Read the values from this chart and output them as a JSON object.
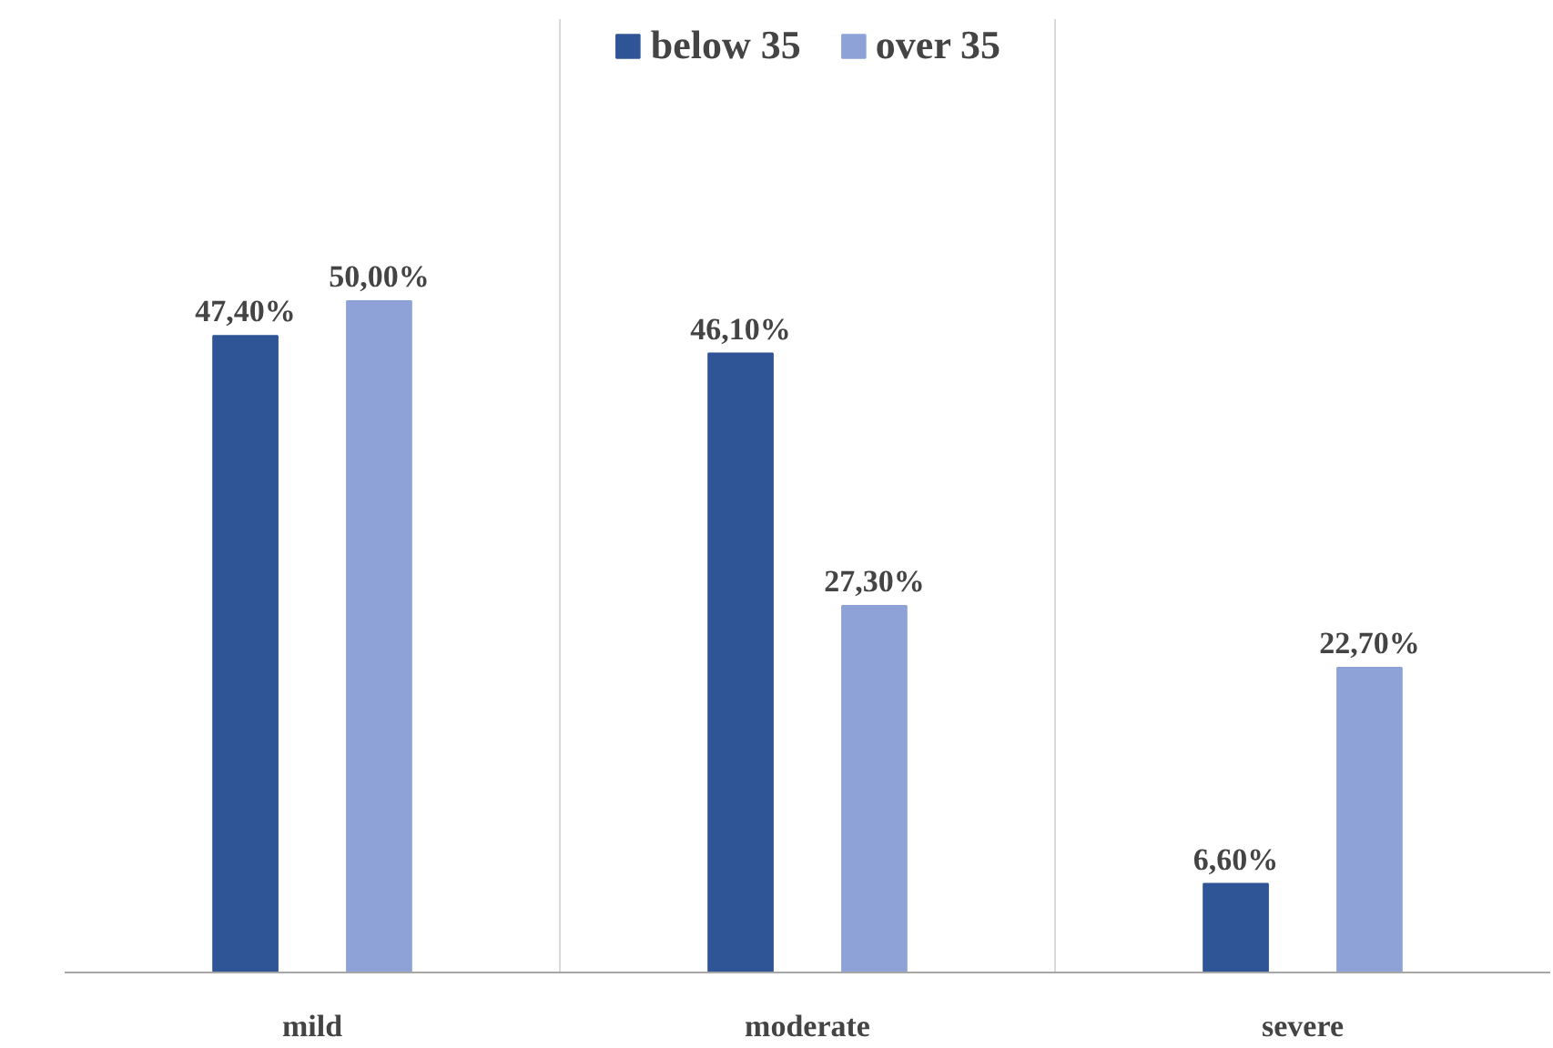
{
  "chart_data": {
    "type": "bar",
    "categories": [
      "mild",
      "moderate",
      "severe"
    ],
    "series": [
      {
        "name": "below 35",
        "color": "#2f5597",
        "values": [
          47.4,
          46.1,
          6.6
        ],
        "value_labels": [
          "47,40%",
          "46,10%",
          "6,60%"
        ]
      },
      {
        "name": "over 35",
        "color": "#8ea2d8",
        "values": [
          50.0,
          27.3,
          22.7
        ],
        "value_labels": [
          "50,00%",
          "27,30%",
          "22,70%"
        ]
      }
    ],
    "grid": "x",
    "legend": "top"
  }
}
